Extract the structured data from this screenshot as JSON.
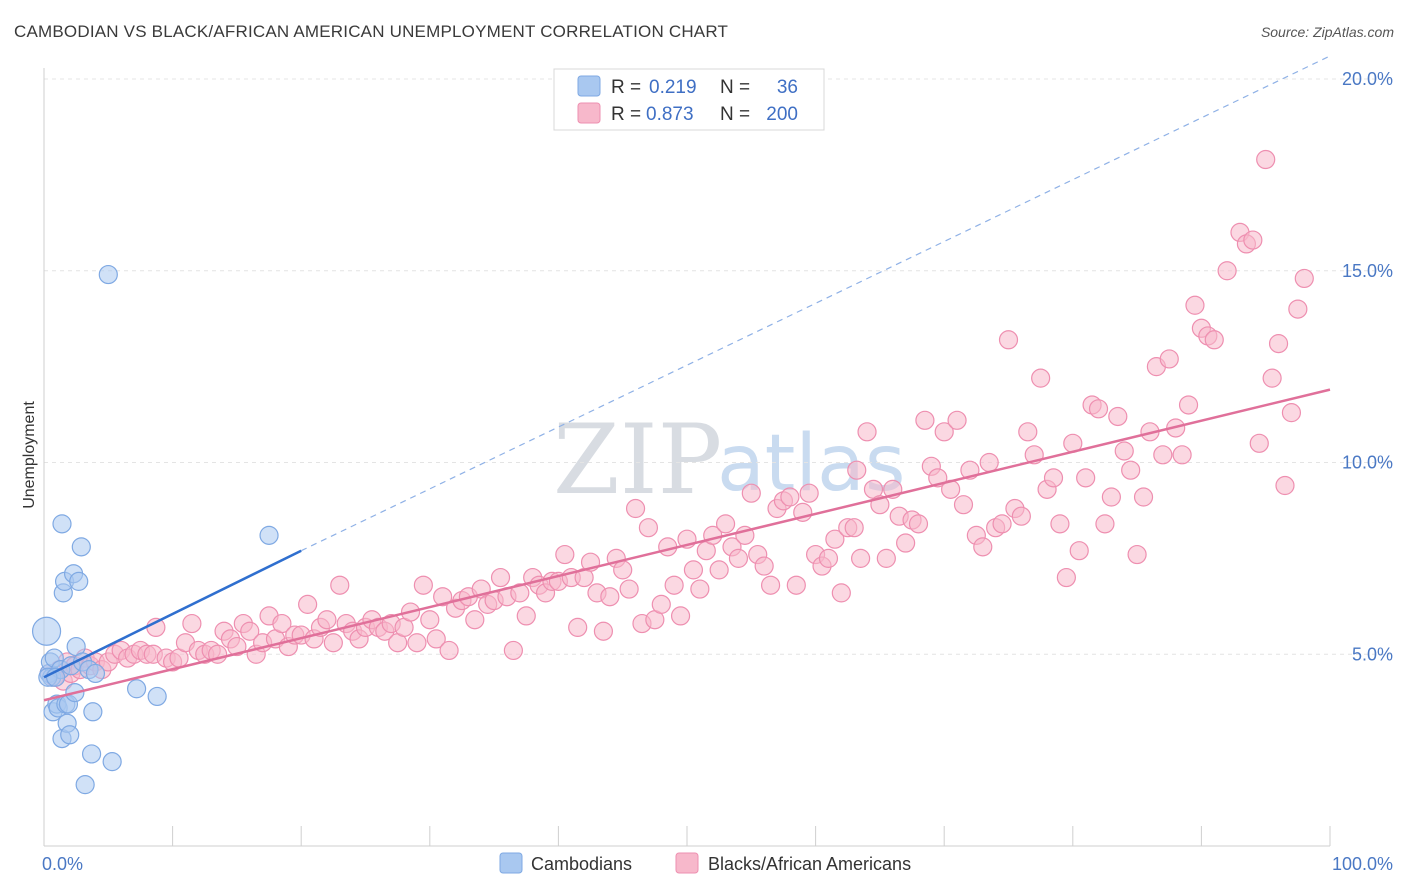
{
  "header": {
    "title": "CAMBODIAN VS BLACK/AFRICAN AMERICAN UNEMPLOYMENT CORRELATION CHART",
    "source": "Source: ZipAtlas.com"
  },
  "watermark": {
    "zip": "ZIP",
    "atlas": "atlas"
  },
  "legend": {
    "rows": [
      {
        "r_label": "R =",
        "r_value": "0.219",
        "n_label": "N =",
        "n_value": "36",
        "color": "#a9c8f0"
      },
      {
        "r_label": "R =",
        "r_value": "0.873",
        "n_label": "N =",
        "n_value": "200",
        "color": "#f7b8cb"
      }
    ]
  },
  "bottom_legend": {
    "items": [
      {
        "label": "Cambodians",
        "color": "#a9c8f0"
      },
      {
        "label": "Blacks/African Americans",
        "color": "#f7b8cb"
      }
    ]
  },
  "chart_data": {
    "type": "scatter",
    "title": "CAMBODIAN VS BLACK/AFRICAN AMERICAN UNEMPLOYMENT CORRELATION CHART",
    "xlabel": "",
    "ylabel": "Unemployment",
    "xlim": [
      0,
      100
    ],
    "ylim": [
      0,
      20
    ],
    "x_tick_labels": [
      "0.0%",
      "100.0%"
    ],
    "y_ticks": [
      5,
      10,
      15,
      20
    ],
    "y_tick_labels": [
      "5.0%",
      "10.0%",
      "15.0%",
      "20.0%"
    ],
    "grid": true,
    "series": [
      {
        "name": "Cambodians",
        "color": "#7fa9e3",
        "fill": "#a9c8f0",
        "trend": {
          "x0": 0,
          "y0": 4.4,
          "x1": 20,
          "y1": 7.7,
          "dashed_to_x": 100,
          "dashed_to_y": 20.6,
          "color": "#2f6fcf"
        },
        "points": [
          [
            0.2,
            5.6
          ],
          [
            0.4,
            4.5
          ],
          [
            0.5,
            4.8
          ],
          [
            0.6,
            4.4
          ],
          [
            0.7,
            3.5
          ],
          [
            0.8,
            4.9
          ],
          [
            1.0,
            3.7
          ],
          [
            1.1,
            3.6
          ],
          [
            1.3,
            4.6
          ],
          [
            1.4,
            2.8
          ],
          [
            1.4,
            8.4
          ],
          [
            1.5,
            6.6
          ],
          [
            1.6,
            6.9
          ],
          [
            1.7,
            3.7
          ],
          [
            1.8,
            3.2
          ],
          [
            1.9,
            3.7
          ],
          [
            2.0,
            2.9
          ],
          [
            2.1,
            4.7
          ],
          [
            2.3,
            7.1
          ],
          [
            2.4,
            4.0
          ],
          [
            2.5,
            5.2
          ],
          [
            2.7,
            6.9
          ],
          [
            2.9,
            7.8
          ],
          [
            3.0,
            4.8
          ],
          [
            3.2,
            1.6
          ],
          [
            3.5,
            4.6
          ],
          [
            3.7,
            2.4
          ],
          [
            3.8,
            3.5
          ],
          [
            4.0,
            4.5
          ],
          [
            5.3,
            2.2
          ],
          [
            5.0,
            14.9
          ],
          [
            7.2,
            4.1
          ],
          [
            8.8,
            3.9
          ],
          [
            17.5,
            8.1
          ],
          [
            0.3,
            4.4
          ],
          [
            0.9,
            4.4
          ]
        ]
      },
      {
        "name": "Blacks/African Americans",
        "color": "#ee8fb0",
        "fill": "#f7b8cb",
        "trend": {
          "x0": 0,
          "y0": 3.8,
          "x1": 100,
          "y1": 11.9,
          "color": "#e0709a"
        },
        "points": [
          [
            0.4,
            4.5
          ],
          [
            0.8,
            4.4
          ],
          [
            1.2,
            4.6
          ],
          [
            1.5,
            4.3
          ],
          [
            1.8,
            4.8
          ],
          [
            2.1,
            4.5
          ],
          [
            2.4,
            4.7
          ],
          [
            2.8,
            4.6
          ],
          [
            3.2,
            4.9
          ],
          [
            3.6,
            4.7
          ],
          [
            4.0,
            4.8
          ],
          [
            4.5,
            4.6
          ],
          [
            5.0,
            4.8
          ],
          [
            5.5,
            5.0
          ],
          [
            6.0,
            5.1
          ],
          [
            6.5,
            4.9
          ],
          [
            7.0,
            5.0
          ],
          [
            7.5,
            5.1
          ],
          [
            8.0,
            5.0
          ],
          [
            8.5,
            5.0
          ],
          [
            8.7,
            5.7
          ],
          [
            9.5,
            4.9
          ],
          [
            10.0,
            4.8
          ],
          [
            10.5,
            4.9
          ],
          [
            11.0,
            5.3
          ],
          [
            11.5,
            5.8
          ],
          [
            12.0,
            5.1
          ],
          [
            12.5,
            5.0
          ],
          [
            13.0,
            5.1
          ],
          [
            13.5,
            5.0
          ],
          [
            14.0,
            5.6
          ],
          [
            14.5,
            5.4
          ],
          [
            15.0,
            5.2
          ],
          [
            15.5,
            5.8
          ],
          [
            16.0,
            5.6
          ],
          [
            16.5,
            5.0
          ],
          [
            17.0,
            5.3
          ],
          [
            17.5,
            6.0
          ],
          [
            18.0,
            5.4
          ],
          [
            18.5,
            5.8
          ],
          [
            19.0,
            5.2
          ],
          [
            19.5,
            5.5
          ],
          [
            20.0,
            5.5
          ],
          [
            20.5,
            6.3
          ],
          [
            21.0,
            5.4
          ],
          [
            21.5,
            5.7
          ],
          [
            22.0,
            5.9
          ],
          [
            22.5,
            5.3
          ],
          [
            23.0,
            6.8
          ],
          [
            23.5,
            5.8
          ],
          [
            24.0,
            5.6
          ],
          [
            24.5,
            5.4
          ],
          [
            25.0,
            5.7
          ],
          [
            25.5,
            5.9
          ],
          [
            26.0,
            5.7
          ],
          [
            26.5,
            5.6
          ],
          [
            27.0,
            5.8
          ],
          [
            27.5,
            5.3
          ],
          [
            28.0,
            5.7
          ],
          [
            28.5,
            6.1
          ],
          [
            29.0,
            5.3
          ],
          [
            29.5,
            6.8
          ],
          [
            30.0,
            5.9
          ],
          [
            30.5,
            5.4
          ],
          [
            31.0,
            6.5
          ],
          [
            31.5,
            5.1
          ],
          [
            32.0,
            6.2
          ],
          [
            32.5,
            6.4
          ],
          [
            33.0,
            6.5
          ],
          [
            33.5,
            5.9
          ],
          [
            34.0,
            6.7
          ],
          [
            34.5,
            6.3
          ],
          [
            35.0,
            6.4
          ],
          [
            35.5,
            7.0
          ],
          [
            36.0,
            6.5
          ],
          [
            36.5,
            5.1
          ],
          [
            37.0,
            6.6
          ],
          [
            37.5,
            6.0
          ],
          [
            38.0,
            7.0
          ],
          [
            38.5,
            6.8
          ],
          [
            39.0,
            6.6
          ],
          [
            39.5,
            6.9
          ],
          [
            40.0,
            6.9
          ],
          [
            40.5,
            7.6
          ],
          [
            41.0,
            7.0
          ],
          [
            41.5,
            5.7
          ],
          [
            42.0,
            7.0
          ],
          [
            42.5,
            7.4
          ],
          [
            43.0,
            6.6
          ],
          [
            43.5,
            5.6
          ],
          [
            44.0,
            6.5
          ],
          [
            44.5,
            7.5
          ],
          [
            45.0,
            7.2
          ],
          [
            45.5,
            6.7
          ],
          [
            46.0,
            8.8
          ],
          [
            46.5,
            5.8
          ],
          [
            47.0,
            8.3
          ],
          [
            47.5,
            5.9
          ],
          [
            48.0,
            6.3
          ],
          [
            48.5,
            7.8
          ],
          [
            49.0,
            6.8
          ],
          [
            49.5,
            6.0
          ],
          [
            50.0,
            8.0
          ],
          [
            50.5,
            7.2
          ],
          [
            51.0,
            6.7
          ],
          [
            51.5,
            7.7
          ],
          [
            52.0,
            8.1
          ],
          [
            52.5,
            7.2
          ],
          [
            53.0,
            8.4
          ],
          [
            53.5,
            7.8
          ],
          [
            54.0,
            7.5
          ],
          [
            54.5,
            8.1
          ],
          [
            55.0,
            9.2
          ],
          [
            55.5,
            7.6
          ],
          [
            56.0,
            7.3
          ],
          [
            56.5,
            6.8
          ],
          [
            57.0,
            8.8
          ],
          [
            57.5,
            9.0
          ],
          [
            58.0,
            9.1
          ],
          [
            58.5,
            6.8
          ],
          [
            59.0,
            8.7
          ],
          [
            59.5,
            9.2
          ],
          [
            60.0,
            7.6
          ],
          [
            60.5,
            7.3
          ],
          [
            61.0,
            7.5
          ],
          [
            61.5,
            8.0
          ],
          [
            62.0,
            6.6
          ],
          [
            62.5,
            8.3
          ],
          [
            63.0,
            8.3
          ],
          [
            63.5,
            7.5
          ],
          [
            64.0,
            10.8
          ],
          [
            64.5,
            9.3
          ],
          [
            65.0,
            8.9
          ],
          [
            65.5,
            7.5
          ],
          [
            66.0,
            9.3
          ],
          [
            66.5,
            8.6
          ],
          [
            67.0,
            7.9
          ],
          [
            67.5,
            8.5
          ],
          [
            68.0,
            8.4
          ],
          [
            68.5,
            11.1
          ],
          [
            69.0,
            9.9
          ],
          [
            69.5,
            9.6
          ],
          [
            70.0,
            10.8
          ],
          [
            70.5,
            9.3
          ],
          [
            71.0,
            11.1
          ],
          [
            71.5,
            8.9
          ],
          [
            72.0,
            9.8
          ],
          [
            72.5,
            8.1
          ],
          [
            73.0,
            7.8
          ],
          [
            73.5,
            10.0
          ],
          [
            74.0,
            8.3
          ],
          [
            74.5,
            8.4
          ],
          [
            75.0,
            13.2
          ],
          [
            75.5,
            8.8
          ],
          [
            76.0,
            8.6
          ],
          [
            76.5,
            10.8
          ],
          [
            77.0,
            10.2
          ],
          [
            77.5,
            12.2
          ],
          [
            78.0,
            9.3
          ],
          [
            78.5,
            9.6
          ],
          [
            79.0,
            8.4
          ],
          [
            79.5,
            7.0
          ],
          [
            80.0,
            10.5
          ],
          [
            80.5,
            7.7
          ],
          [
            81.0,
            9.6
          ],
          [
            81.5,
            11.5
          ],
          [
            82.0,
            11.4
          ],
          [
            82.5,
            8.4
          ],
          [
            83.0,
            9.1
          ],
          [
            83.5,
            11.2
          ],
          [
            84.0,
            10.3
          ],
          [
            84.5,
            9.8
          ],
          [
            85.0,
            7.6
          ],
          [
            85.5,
            9.1
          ],
          [
            86.0,
            10.8
          ],
          [
            86.5,
            12.5
          ],
          [
            87.0,
            10.2
          ],
          [
            87.5,
            12.7
          ],
          [
            88.0,
            10.9
          ],
          [
            88.5,
            10.2
          ],
          [
            89.0,
            11.5
          ],
          [
            89.5,
            14.1
          ],
          [
            90.0,
            13.5
          ],
          [
            90.5,
            13.3
          ],
          [
            91.0,
            13.2
          ],
          [
            92.0,
            15.0
          ],
          [
            93.0,
            16.0
          ],
          [
            93.5,
            15.7
          ],
          [
            94.0,
            15.8
          ],
          [
            94.5,
            10.5
          ],
          [
            95.0,
            17.9
          ],
          [
            95.5,
            12.2
          ],
          [
            96.0,
            13.1
          ],
          [
            96.5,
            9.4
          ],
          [
            97.0,
            11.3
          ],
          [
            97.5,
            14.0
          ],
          [
            98.0,
            14.8
          ],
          [
            63.2,
            9.8
          ]
        ]
      }
    ]
  }
}
